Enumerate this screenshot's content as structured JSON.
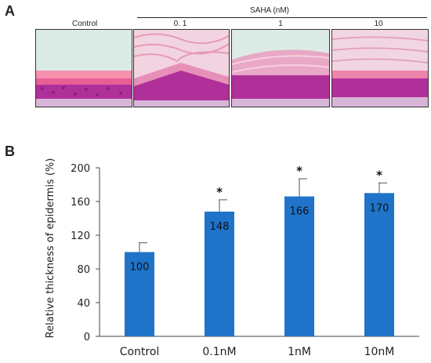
{
  "panel_a": {
    "letter": "A",
    "control_label": "Control",
    "group_label": "SAHA (nM)",
    "concentrations": [
      "0. 1",
      "1",
      "10"
    ],
    "images": [
      {
        "name": "micrograph-control",
        "description": "histology"
      },
      {
        "name": "micrograph-0.1",
        "description": "histology"
      },
      {
        "name": "micrograph-1",
        "description": "histology"
      },
      {
        "name": "micrograph-10",
        "description": "histology"
      }
    ]
  },
  "panel_b": {
    "letter": "B"
  },
  "colors": {
    "bar": "#1f73c9",
    "error": "#555555",
    "axis": "#444444",
    "epidermis_pink": "#f08aa8",
    "tissue_purple": "#b0309a"
  },
  "chart_data": {
    "type": "bar",
    "categories": [
      "Control",
      "0.1nM",
      "1nM",
      "10nM"
    ],
    "values": [
      100,
      148,
      166,
      170
    ],
    "errors": [
      11,
      14,
      21,
      12
    ],
    "data_labels": [
      "100",
      "148",
      "166",
      "170"
    ],
    "significance": [
      "",
      "*",
      "*",
      "*"
    ],
    "ylabel": "Relative thickness of epidermis (%)",
    "xlabel": "",
    "ylim": [
      0,
      200
    ],
    "yticks": [
      0,
      40,
      80,
      120,
      160,
      200
    ],
    "grid": false,
    "legend": "none"
  }
}
